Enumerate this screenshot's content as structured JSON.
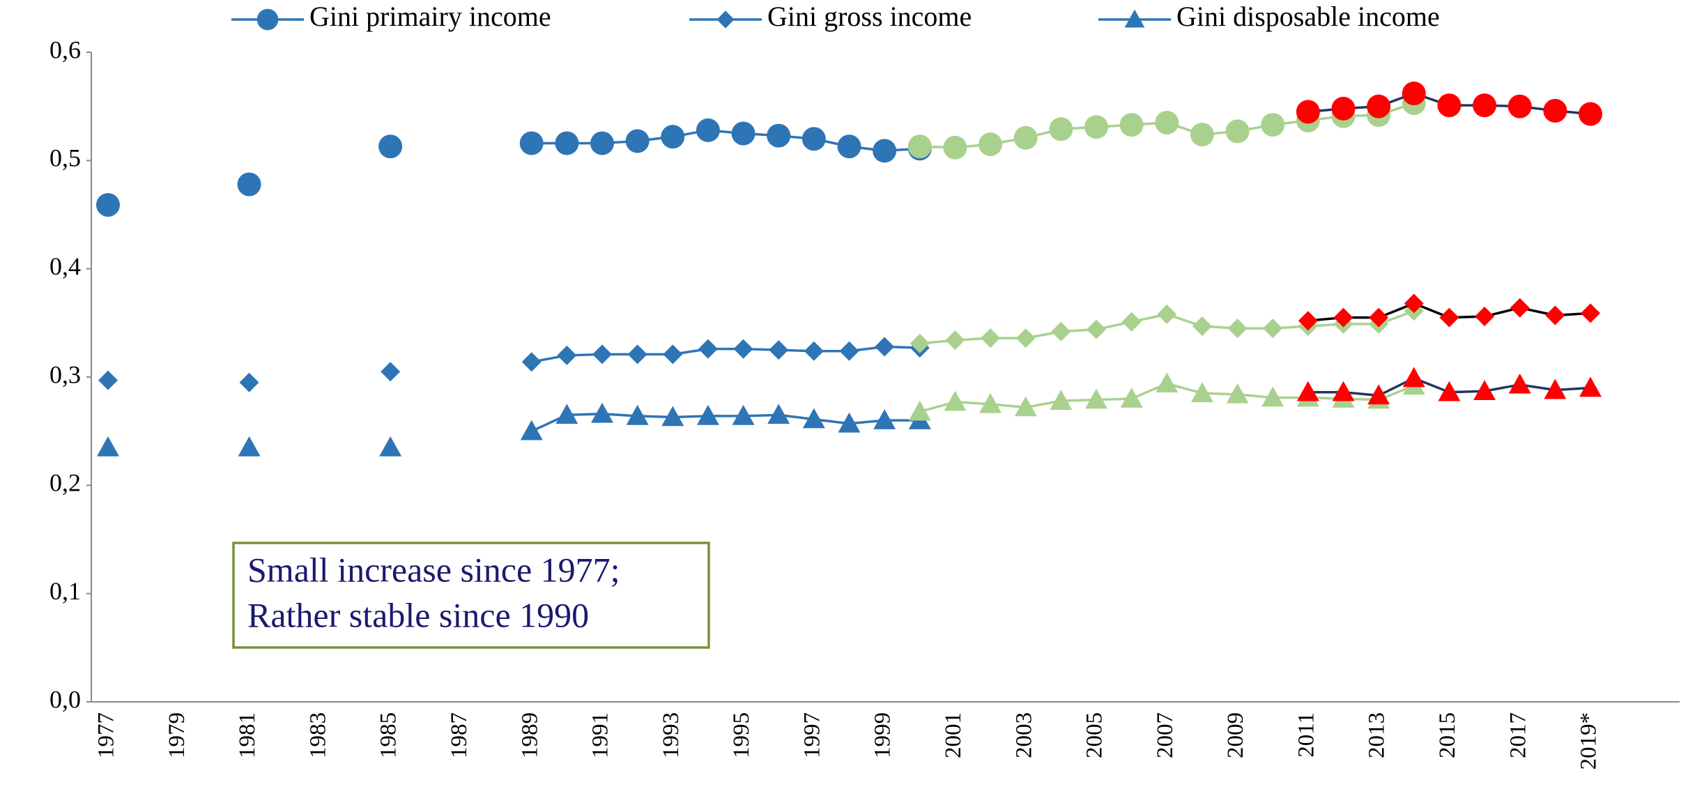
{
  "chart_data": {
    "type": "line",
    "categories": [
      "1977",
      null,
      "1979",
      null,
      "1981",
      null,
      "1983",
      null,
      "1985",
      null,
      "1987",
      null,
      "1989",
      null,
      "1991",
      null,
      "1993",
      null,
      "1995",
      null,
      "1997",
      null,
      "1999",
      null,
      "2001",
      null,
      "2003",
      null,
      "2005",
      null,
      "2007",
      null,
      "2009",
      null,
      "2011",
      null,
      "2013",
      null,
      "2015",
      null,
      "2017",
      null,
      "2019*"
    ],
    "ylim": [
      0,
      0.6
    ],
    "yticks": [
      {
        "value": 0,
        "label": "0,0"
      },
      {
        "value": 0.1,
        "label": "0,1"
      },
      {
        "value": 0.2,
        "label": "0,2"
      },
      {
        "value": 0.3,
        "label": "0,3"
      },
      {
        "value": 0.4,
        "label": "0,4"
      },
      {
        "value": 0.5,
        "label": "0,5"
      },
      {
        "value": 0.6,
        "label": "0,6"
      }
    ],
    "legend": "top",
    "series": [
      {
        "name": "Gini primairy income",
        "color": "#2e75b6",
        "line_color": "#2e75b6",
        "marker": "circle",
        "values": [
          0.459,
          null,
          null,
          null,
          0.478,
          null,
          null,
          null,
          0.513,
          null,
          null,
          null,
          0.516,
          0.516,
          0.516,
          0.518,
          0.522,
          0.528,
          0.525,
          0.523,
          0.52,
          0.513,
          0.509,
          0.511,
          null,
          null,
          null,
          null,
          null,
          null,
          null,
          null,
          null,
          null,
          null,
          null,
          null,
          null,
          null,
          null,
          null,
          null,
          null
        ]
      },
      {
        "name": "Gini gross income",
        "color": "#2e75b6",
        "line_color": "#2e75b6",
        "marker": "diamond",
        "values": [
          0.297,
          null,
          null,
          null,
          0.295,
          null,
          null,
          null,
          0.305,
          null,
          null,
          null,
          0.314,
          0.32,
          0.321,
          0.321,
          0.321,
          0.326,
          0.326,
          0.325,
          0.324,
          0.324,
          0.328,
          0.327,
          null,
          null,
          null,
          null,
          null,
          null,
          null,
          null,
          null,
          null,
          null,
          null,
          null,
          null,
          null,
          null,
          null,
          null,
          null
        ]
      },
      {
        "name": "Gini disposable income",
        "color": "#2e75b6",
        "line_color": "#2e75b6",
        "marker": "triangle",
        "values": [
          0.235,
          null,
          null,
          null,
          0.235,
          null,
          null,
          null,
          0.235,
          null,
          null,
          null,
          0.25,
          0.265,
          0.266,
          0.264,
          0.263,
          0.264,
          0.264,
          0.265,
          0.261,
          0.257,
          0.26,
          0.26,
          null,
          null,
          null,
          null,
          null,
          null,
          null,
          null,
          null,
          null,
          null,
          null,
          null,
          null,
          null,
          null,
          null,
          null,
          null
        ]
      },
      {
        "color": "#a9d18e",
        "line_color": "#a9d18e",
        "marker": "circle",
        "values": [
          null,
          null,
          null,
          null,
          null,
          null,
          null,
          null,
          null,
          null,
          null,
          null,
          null,
          null,
          null,
          null,
          null,
          null,
          null,
          null,
          null,
          null,
          null,
          0.513,
          0.512,
          0.515,
          0.521,
          0.529,
          0.531,
          0.533,
          0.535,
          0.524,
          0.527,
          0.533,
          0.537,
          0.541,
          0.542,
          0.553,
          null,
          null,
          null,
          null,
          null
        ]
      },
      {
        "color": "#a9d18e",
        "line_color": "#a9d18e",
        "marker": "diamond",
        "values": [
          null,
          null,
          null,
          null,
          null,
          null,
          null,
          null,
          null,
          null,
          null,
          null,
          null,
          null,
          null,
          null,
          null,
          null,
          null,
          null,
          null,
          null,
          null,
          0.331,
          0.334,
          0.336,
          0.336,
          0.342,
          0.344,
          0.351,
          0.358,
          0.347,
          0.345,
          0.345,
          0.347,
          0.349,
          0.349,
          0.361,
          null,
          null,
          null,
          null,
          null
        ]
      },
      {
        "color": "#a9d18e",
        "line_color": "#a9d18e",
        "marker": "triangle",
        "values": [
          null,
          null,
          null,
          null,
          null,
          null,
          null,
          null,
          null,
          null,
          null,
          null,
          null,
          null,
          null,
          null,
          null,
          null,
          null,
          null,
          null,
          null,
          null,
          0.268,
          0.277,
          0.275,
          0.272,
          0.278,
          0.279,
          0.28,
          0.294,
          0.285,
          0.284,
          0.281,
          0.281,
          0.28,
          0.279,
          0.292,
          null,
          null,
          null,
          null,
          null
        ]
      },
      {
        "color": "#ff0000",
        "line_color": "#1f3864",
        "marker": "circle",
        "values": [
          null,
          null,
          null,
          null,
          null,
          null,
          null,
          null,
          null,
          null,
          null,
          null,
          null,
          null,
          null,
          null,
          null,
          null,
          null,
          null,
          null,
          null,
          null,
          null,
          null,
          null,
          null,
          null,
          null,
          null,
          null,
          null,
          null,
          null,
          0.545,
          0.548,
          0.55,
          0.562,
          0.551,
          0.551,
          0.55,
          0.546,
          0.543
        ]
      },
      {
        "color": "#ff0000",
        "line_color": "#000000",
        "marker": "diamond",
        "values": [
          null,
          null,
          null,
          null,
          null,
          null,
          null,
          null,
          null,
          null,
          null,
          null,
          null,
          null,
          null,
          null,
          null,
          null,
          null,
          null,
          null,
          null,
          null,
          null,
          null,
          null,
          null,
          null,
          null,
          null,
          null,
          null,
          null,
          null,
          0.352,
          0.355,
          0.355,
          0.368,
          0.355,
          0.356,
          0.364,
          0.357,
          0.359
        ]
      },
      {
        "color": "#ff0000",
        "line_color": "#1f3864",
        "marker": "triangle",
        "values": [
          null,
          null,
          null,
          null,
          null,
          null,
          null,
          null,
          null,
          null,
          null,
          null,
          null,
          null,
          null,
          null,
          null,
          null,
          null,
          null,
          null,
          null,
          null,
          null,
          null,
          null,
          null,
          null,
          null,
          null,
          null,
          null,
          null,
          null,
          0.286,
          0.286,
          0.283,
          0.299,
          0.286,
          0.287,
          0.293,
          0.288,
          0.29
        ]
      }
    ],
    "annotations": [
      "Small increase since 1977;",
      "Rather stable since 1990"
    ]
  }
}
